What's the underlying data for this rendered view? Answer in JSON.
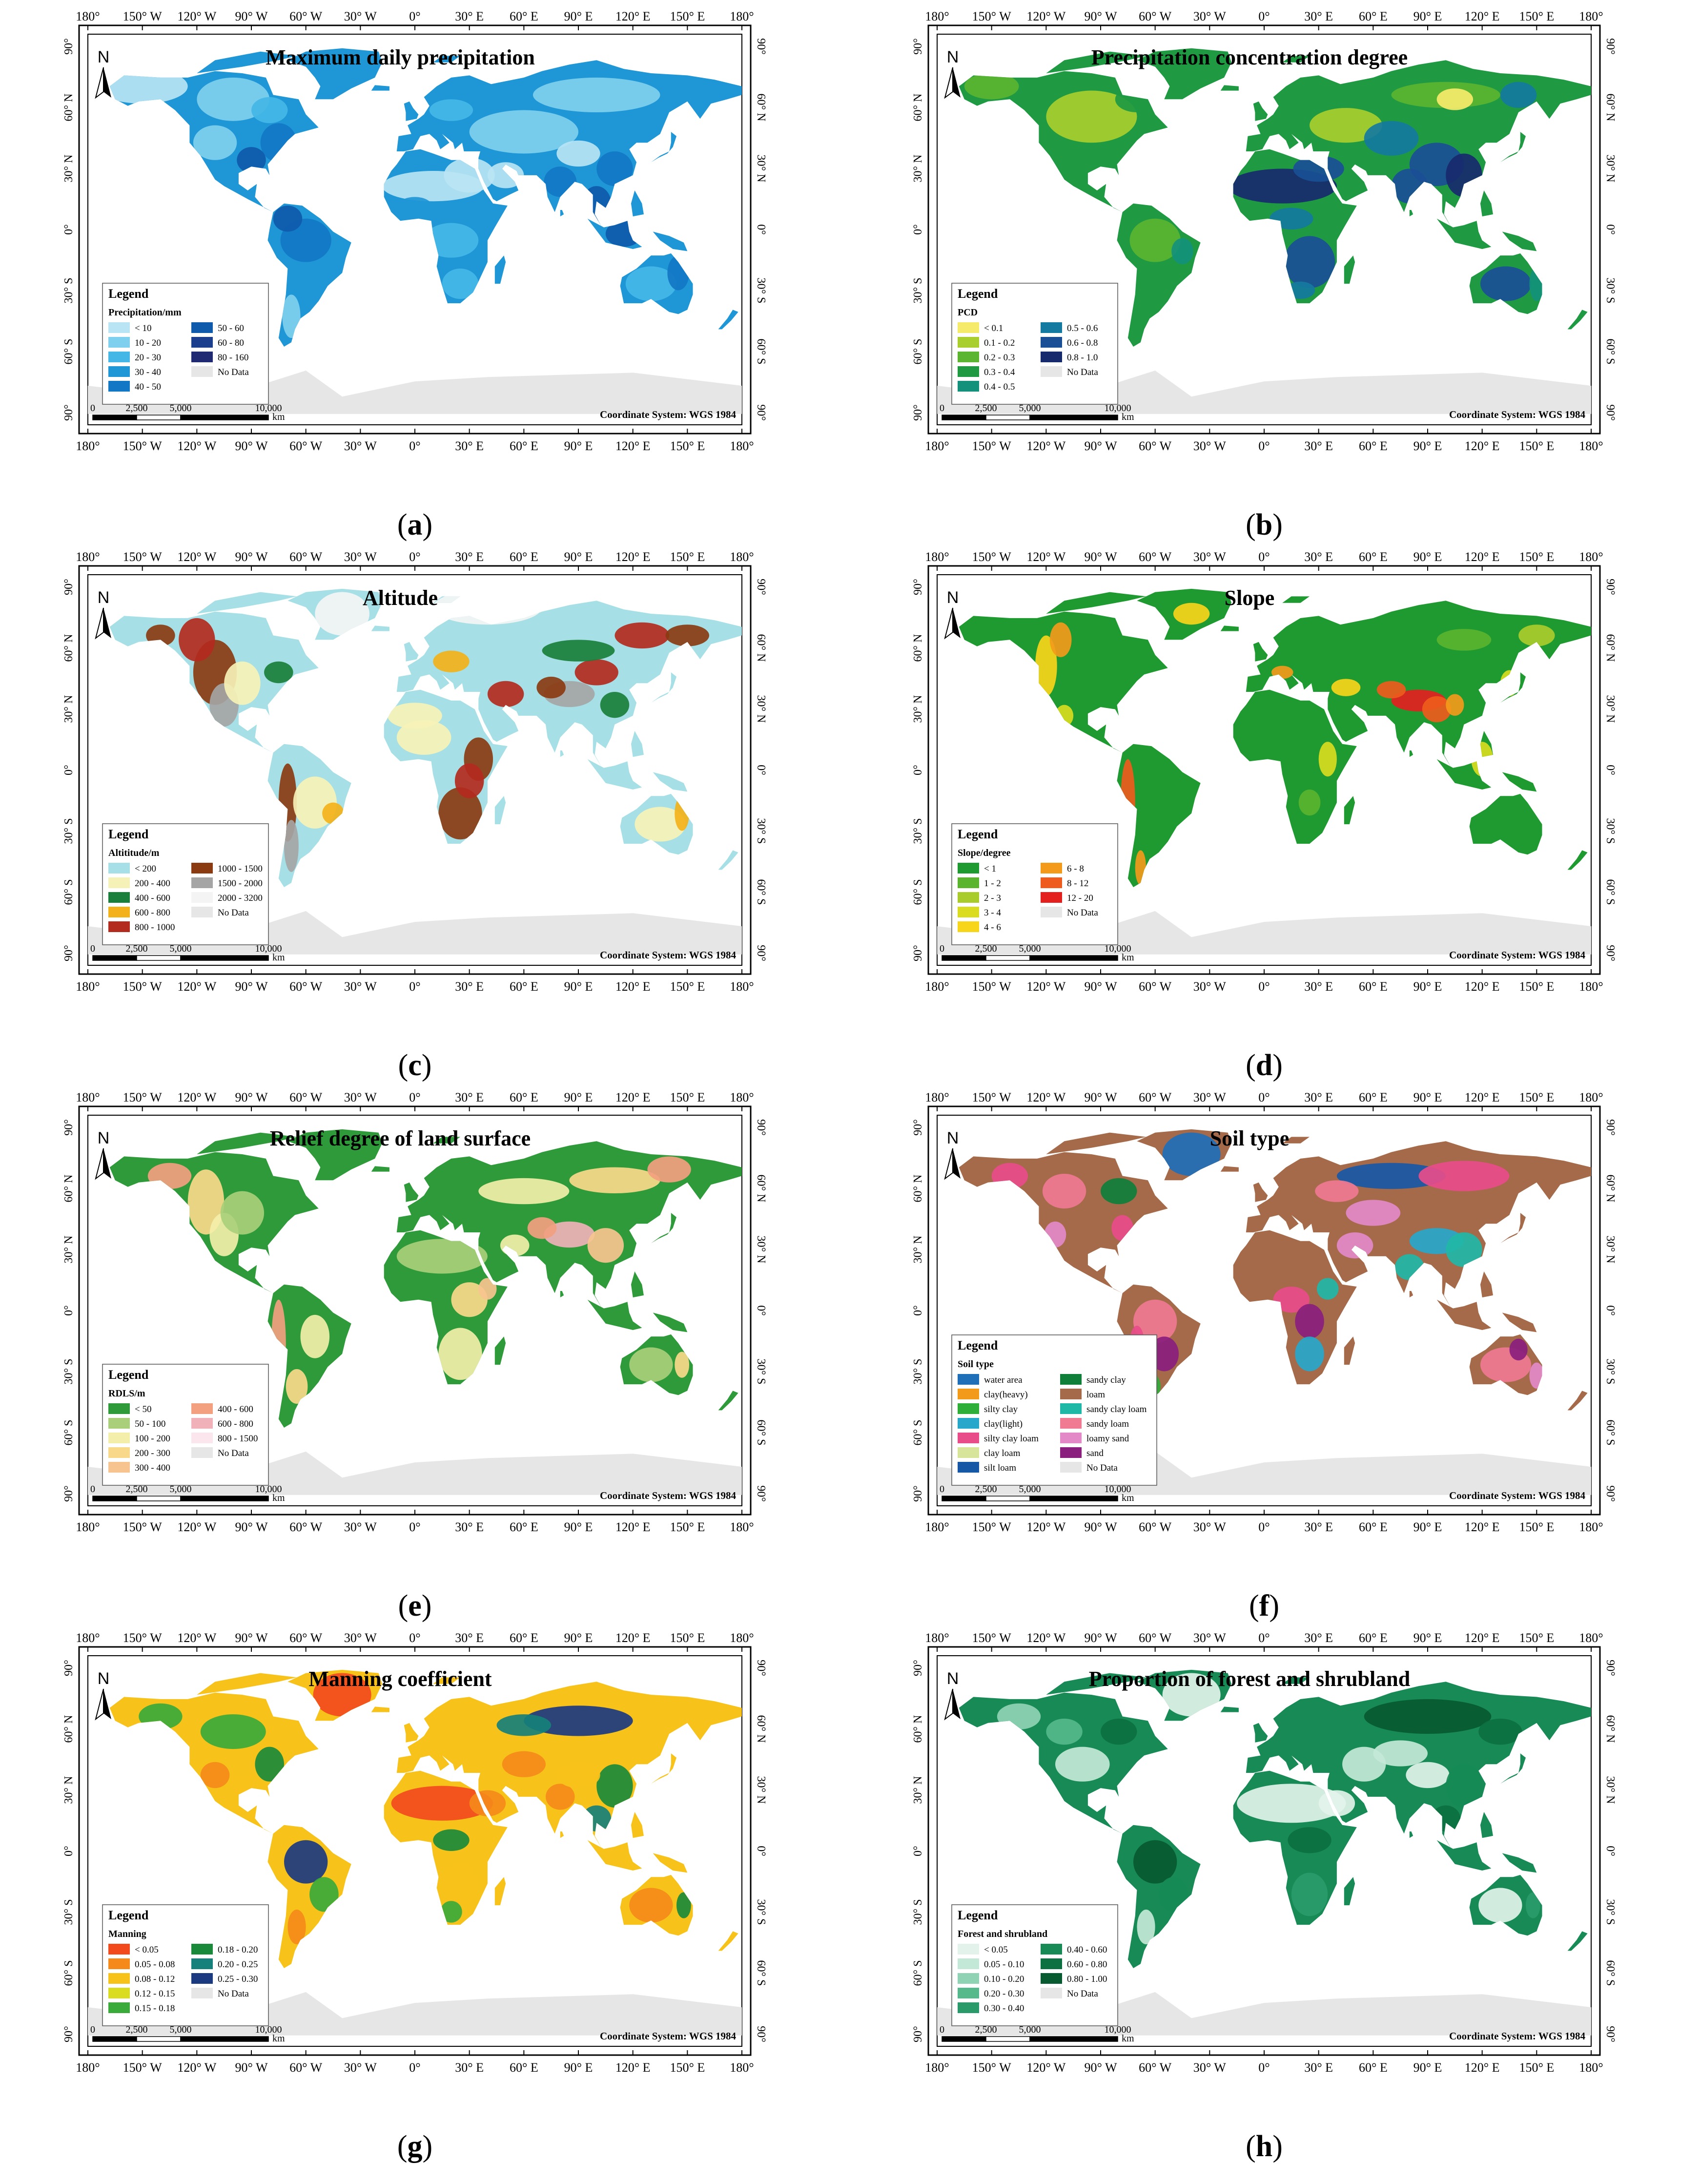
{
  "panels": [
    {
      "title": "Maximum daily precipitation",
      "caption_letter": "a",
      "scheme": "precip",
      "legend_title": "Legend",
      "legend_subtitle": "Precipitation/mm",
      "legend_items": [
        {
          "label": "< 10",
          "color": "#b9e4f4"
        },
        {
          "label": "10 - 20",
          "color": "#7fd0ee"
        },
        {
          "label": "20 - 30",
          "color": "#44b7e6"
        },
        {
          "label": "30 - 40",
          "color": "#1f96d6"
        },
        {
          "label": "40 - 50",
          "color": "#1277c5"
        },
        {
          "label": "50 - 60",
          "color": "#0f5aab"
        },
        {
          "label": "60 - 80",
          "color": "#1b3f8d"
        },
        {
          "label": "80 - 160",
          "color": "#202a72"
        },
        {
          "label": "No Data",
          "color": "#e6e6e6"
        }
      ],
      "legend_columns": 2
    },
    {
      "title": "Precipitation concentration degree",
      "caption_letter": "b",
      "scheme": "pcd",
      "legend_title": "Legend",
      "legend_subtitle": "PCD",
      "legend_items": [
        {
          "label": "< 0.1",
          "color": "#f6ea6a"
        },
        {
          "label": "0.1 - 0.2",
          "color": "#a8cf2e"
        },
        {
          "label": "0.2 - 0.3",
          "color": "#5bb530"
        },
        {
          "label": "0.3 - 0.4",
          "color": "#1f9a43"
        },
        {
          "label": "0.4 - 0.5",
          "color": "#13917a"
        },
        {
          "label": "0.5 - 0.6",
          "color": "#157aa0"
        },
        {
          "label": "0.6 - 0.8",
          "color": "#1a4f96"
        },
        {
          "label": "0.8 - 1.0",
          "color": "#172a6c"
        },
        {
          "label": "No Data",
          "color": "#e6e6e6"
        }
      ],
      "legend_columns": 2
    },
    {
      "title": "Altitude",
      "caption_letter": "c",
      "scheme": "altitude",
      "legend_title": "Legend",
      "legend_subtitle": "Altititude/m",
      "legend_items": [
        {
          "label": "< 200",
          "color": "#a6e0e6"
        },
        {
          "label": "200 - 400",
          "color": "#f6f2b7"
        },
        {
          "label": "400 - 600",
          "color": "#1a7f3a"
        },
        {
          "label": "600 - 800",
          "color": "#f3b21a"
        },
        {
          "label": "800 - 1000",
          "color": "#b32a1e"
        },
        {
          "label": "1000 - 1500",
          "color": "#8a3b12"
        },
        {
          "label": "1500 - 2000",
          "color": "#a5a5a5"
        },
        {
          "label": "2000 - 3200",
          "color": "#f4f4f4"
        },
        {
          "label": "No Data",
          "color": "#e6e6e6"
        }
      ],
      "legend_columns": 2
    },
    {
      "title": "Slope",
      "caption_letter": "d",
      "scheme": "slope",
      "legend_title": "Legend",
      "legend_subtitle": "Slope/degree",
      "legend_items": [
        {
          "label": "< 1",
          "color": "#1f9a31"
        },
        {
          "label": "1 - 2",
          "color": "#5ab42e"
        },
        {
          "label": "2 - 3",
          "color": "#a9cc2a"
        },
        {
          "label": "3 - 4",
          "color": "#d9dc1f"
        },
        {
          "label": "4 - 6",
          "color": "#f7d51a"
        },
        {
          "label": "6 - 8",
          "color": "#f39a1a"
        },
        {
          "label": "8 - 12",
          "color": "#ee5b1c"
        },
        {
          "label": "12 - 20",
          "color": "#e4201e"
        },
        {
          "label": "No Data",
          "color": "#e6e6e6"
        }
      ],
      "legend_columns": 2
    },
    {
      "title": "Relief degree of land surface",
      "caption_letter": "e",
      "scheme": "rdls",
      "legend_title": "Legend",
      "legend_subtitle": "RDLS/m",
      "legend_items": [
        {
          "label": "< 50",
          "color": "#2f9a3a"
        },
        {
          "label": "50 - 100",
          "color": "#a9cf7a"
        },
        {
          "label": "100 - 200",
          "color": "#f3efaa"
        },
        {
          "label": "200 - 300",
          "color": "#f8d98a"
        },
        {
          "label": "300 - 400",
          "color": "#f7c48f"
        },
        {
          "label": "400 - 600",
          "color": "#f2a07f"
        },
        {
          "label": "600 - 800",
          "color": "#f0b2b8"
        },
        {
          "label": "800 - 1500",
          "color": "#fbe6ee"
        },
        {
          "label": "No Data",
          "color": "#e6e6e6"
        }
      ],
      "legend_columns": 2
    },
    {
      "title": "Soil type",
      "caption_letter": "f",
      "scheme": "soil",
      "legend_title": "Legend",
      "legend_subtitle": "Soil type",
      "legend_items": [
        {
          "label": "water area",
          "color": "#1f6fb8"
        },
        {
          "label": "clay(heavy)",
          "color": "#f39a1a"
        },
        {
          "label": "silty clay",
          "color": "#2fae3a"
        },
        {
          "label": "clay(light)",
          "color": "#27a7c9"
        },
        {
          "label": "silty clay loam",
          "color": "#e84d8a"
        },
        {
          "label": "clay loam",
          "color": "#d6e59a"
        },
        {
          "label": "silt loam",
          "color": "#1758a6"
        },
        {
          "label": "sandy clay",
          "color": "#0f7f3a"
        },
        {
          "label": "loam",
          "color": "#a46a4a"
        },
        {
          "label": "sandy clay loam",
          "color": "#1fb7a6"
        },
        {
          "label": "sandy loam",
          "color": "#f07a92"
        },
        {
          "label": "loamy sand",
          "color": "#e389c8"
        },
        {
          "label": "sand",
          "color": "#8a1f7d"
        },
        {
          "label": "No Data",
          "color": "#e6e6e6"
        }
      ],
      "legend_columns": 2
    },
    {
      "title": "Manning coefficient",
      "caption_letter": "g",
      "scheme": "manning",
      "legend_title": "Legend",
      "legend_subtitle": "Manning",
      "legend_items": [
        {
          "label": "< 0.05",
          "color": "#f24a1d"
        },
        {
          "label": "0.05 - 0.08",
          "color": "#f58a1a"
        },
        {
          "label": "0.08 - 0.12",
          "color": "#f7c21a"
        },
        {
          "label": "0.12 - 0.15",
          "color": "#d9dc1f"
        },
        {
          "label": "0.15 - 0.18",
          "color": "#3aaa3a"
        },
        {
          "label": "0.18 - 0.20",
          "color": "#1a8a3a"
        },
        {
          "label": "0.20 - 0.25",
          "color": "#16807a"
        },
        {
          "label": "0.25 - 0.30",
          "color": "#1b3a80"
        },
        {
          "label": "No Data",
          "color": "#e6e6e6"
        }
      ],
      "legend_columns": 2
    },
    {
      "title": "Proportion of forest and shrubland",
      "caption_letter": "h",
      "scheme": "forest",
      "legend_title": "Legend",
      "legend_subtitle": "Forest and shrubland",
      "legend_items": [
        {
          "label": "< 0.05",
          "color": "#e3f3ec"
        },
        {
          "label": "0.05 - 0.10",
          "color": "#c4e8d8"
        },
        {
          "label": "0.10 - 0.20",
          "color": "#8fd3b4"
        },
        {
          "label": "0.20 - 0.30",
          "color": "#55b98c"
        },
        {
          "label": "0.30 - 0.40",
          "color": "#2a9a6a"
        },
        {
          "label": "0.40 - 0.60",
          "color": "#178a55"
        },
        {
          "label": "0.60 - 0.80",
          "color": "#0d7040"
        },
        {
          "label": "0.80 - 1.00",
          "color": "#085a30"
        },
        {
          "label": "No Data",
          "color": "#e6e6e6"
        }
      ],
      "legend_columns": 2
    }
  ],
  "lon_ticks": [
    "180°",
    "150° W",
    "120° W",
    "90° W",
    "60° W",
    "30° W",
    "0°",
    "30° E",
    "60° E",
    "90° E",
    "120° E",
    "150° E",
    "180°"
  ],
  "lat_ticks": [
    "90°",
    "60° N",
    "30° N",
    "0°",
    "30° S",
    "60° S",
    "90°"
  ],
  "north_label": "N",
  "scale_labels": [
    "0",
    "2,500",
    "5,000",
    "10,000"
  ],
  "scale_unit": "km",
  "coord_system": "Coordinate System: WGS 1984"
}
